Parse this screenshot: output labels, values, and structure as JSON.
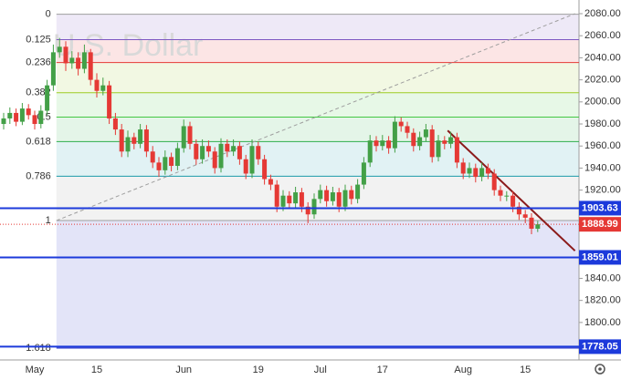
{
  "chart_data": {
    "type": "candlestick",
    "watermark": "U.S. Dollar",
    "up_color": "#43a047",
    "down_color": "#e53935",
    "ylim": [
      1766,
      2092.4
    ],
    "yticks": [
      {
        "value": 2080,
        "label": "2080.00"
      },
      {
        "value": 2060,
        "label": "2060.00"
      },
      {
        "value": 2040,
        "label": "2040.00"
      },
      {
        "value": 2020,
        "label": "2020.00"
      },
      {
        "value": 2000,
        "label": "2000.00"
      },
      {
        "value": 1980,
        "label": "1980.00"
      },
      {
        "value": 1960,
        "label": "1960.00"
      },
      {
        "value": 1940,
        "label": "1940.00"
      },
      {
        "value": 1920,
        "label": "1920.00"
      },
      {
        "value": 1840,
        "label": "1840.00"
      },
      {
        "value": 1820,
        "label": "1820.00"
      },
      {
        "value": 1800,
        "label": "1800.00"
      }
    ],
    "categories": [
      null,
      null,
      null,
      null,
      null,
      "May",
      null,
      null,
      null,
      null,
      null,
      null,
      null,
      null,
      null,
      "15",
      null,
      null,
      null,
      null,
      null,
      null,
      null,
      null,
      null,
      null,
      null,
      null,
      null,
      "Jun",
      null,
      null,
      null,
      null,
      null,
      null,
      null,
      null,
      null,
      null,
      null,
      "19",
      null,
      null,
      null,
      null,
      null,
      null,
      null,
      null,
      null,
      "Jul",
      null,
      null,
      null,
      null,
      null,
      null,
      null,
      null,
      null,
      "17",
      null,
      null,
      null,
      null,
      null,
      null,
      null,
      null,
      null,
      null,
      null,
      null,
      "Aug",
      null,
      null,
      null,
      null,
      null,
      null,
      null,
      null,
      null,
      "15",
      null,
      null
    ],
    "candles": [
      [
        1980,
        1990,
        1975,
        1985
      ],
      [
        1985,
        1995,
        1980,
        1990
      ],
      [
        1990,
        1994,
        1978,
        1982
      ],
      [
        1982,
        1999,
        1979,
        1994
      ],
      [
        1994,
        1998,
        1984,
        1988
      ],
      [
        1988,
        1992,
        1975,
        1980
      ],
      [
        1980,
        1997,
        1976,
        1992
      ],
      [
        1992,
        2020,
        1988,
        2015
      ],
      [
        2015,
        2052,
        2010,
        2045
      ],
      [
        2045,
        2058,
        2040,
        2050
      ],
      [
        2050,
        2055,
        2028,
        2035
      ],
      [
        2035,
        2046,
        2030,
        2040
      ],
      [
        2040,
        2045,
        2024,
        2030
      ],
      [
        2030,
        2052,
        2026,
        2045
      ],
      [
        2045,
        2048,
        2015,
        2020
      ],
      [
        2020,
        2026,
        2004,
        2010
      ],
      [
        2010,
        2022,
        2006,
        2015
      ],
      [
        2015,
        2019,
        1980,
        1985
      ],
      [
        1985,
        1990,
        1970,
        1975
      ],
      [
        1975,
        1980,
        1950,
        1955
      ],
      [
        1955,
        1974,
        1950,
        1968
      ],
      [
        1968,
        1972,
        1957,
        1962
      ],
      [
        1962,
        1980,
        1958,
        1975
      ],
      [
        1975,
        1979,
        1950,
        1955
      ],
      [
        1955,
        1960,
        1940,
        1945
      ],
      [
        1945,
        1950,
        1932,
        1938
      ],
      [
        1938,
        1956,
        1934,
        1950
      ],
      [
        1950,
        1954,
        1937,
        1942
      ],
      [
        1942,
        1963,
        1938,
        1958
      ],
      [
        1958,
        1984,
        1954,
        1978
      ],
      [
        1978,
        1982,
        1957,
        1962
      ],
      [
        1962,
        1966,
        1943,
        1948
      ],
      [
        1948,
        1966,
        1944,
        1960
      ],
      [
        1960,
        1965,
        1950,
        1955
      ],
      [
        1955,
        1959,
        1935,
        1940
      ],
      [
        1940,
        1967,
        1936,
        1962
      ],
      [
        1962,
        1966,
        1950,
        1955
      ],
      [
        1955,
        1966,
        1951,
        1960
      ],
      [
        1960,
        1964,
        1943,
        1948
      ],
      [
        1948,
        1952,
        1930,
        1935
      ],
      [
        1935,
        1966,
        1931,
        1960
      ],
      [
        1960,
        1964,
        1943,
        1948
      ],
      [
        1948,
        1952,
        1925,
        1930
      ],
      [
        1930,
        1934,
        1920,
        1925
      ],
      [
        1925,
        1929,
        1900,
        1905
      ],
      [
        1905,
        1920,
        1901,
        1915
      ],
      [
        1915,
        1919,
        1903,
        1908
      ],
      [
        1908,
        1923,
        1904,
        1918
      ],
      [
        1918,
        1922,
        1900,
        1905
      ],
      [
        1905,
        1909,
        1890,
        1898
      ],
      [
        1898,
        1917,
        1894,
        1912
      ],
      [
        1912,
        1925,
        1908,
        1920
      ],
      [
        1920,
        1924,
        1905,
        1910
      ],
      [
        1910,
        1923,
        1906,
        1918
      ],
      [
        1918,
        1922,
        1900,
        1905
      ],
      [
        1905,
        1925,
        1901,
        1920
      ],
      [
        1920,
        1924,
        1907,
        1912
      ],
      [
        1912,
        1930,
        1908,
        1925
      ],
      [
        1925,
        1950,
        1921,
        1945
      ],
      [
        1945,
        1970,
        1941,
        1965
      ],
      [
        1965,
        1969,
        1955,
        1960
      ],
      [
        1960,
        1970,
        1956,
        1965
      ],
      [
        1965,
        1969,
        1953,
        1958
      ],
      [
        1958,
        1987,
        1954,
        1982
      ],
      [
        1982,
        1986,
        1973,
        1978
      ],
      [
        1978,
        1982,
        1967,
        1972
      ],
      [
        1972,
        1976,
        1955,
        1960
      ],
      [
        1960,
        1973,
        1956,
        1968
      ],
      [
        1968,
        1980,
        1964,
        1975
      ],
      [
        1975,
        1979,
        1945,
        1950
      ],
      [
        1950,
        1970,
        1946,
        1965
      ],
      [
        1965,
        1969,
        1957,
        1962
      ],
      [
        1962,
        1973,
        1958,
        1968
      ],
      [
        1968,
        1972,
        1940,
        1945
      ],
      [
        1945,
        1949,
        1930,
        1935
      ],
      [
        1935,
        1945,
        1931,
        1940
      ],
      [
        1940,
        1944,
        1927,
        1932
      ],
      [
        1932,
        1945,
        1928,
        1940
      ],
      [
        1940,
        1944,
        1930,
        1935
      ],
      [
        1935,
        1939,
        1915,
        1920
      ],
      [
        1920,
        1924,
        1910,
        1915
      ],
      [
        1915,
        1919,
        1910,
        1915
      ],
      [
        1915,
        1919,
        1900,
        1905
      ],
      [
        1905,
        1909,
        1893,
        1898
      ],
      [
        1898,
        1902,
        1890,
        1895
      ],
      [
        1895,
        1899,
        1880,
        1885
      ],
      [
        1885,
        1892,
        1882,
        1888.99
      ]
    ],
    "fib": {
      "start": 8.5,
      "ratios": [
        0,
        0.125,
        0.236,
        0.382,
        0.5,
        0.618,
        0.786,
        1,
        1.618
      ],
      "prices": [
        2079.5,
        2056.5,
        2035.7,
        2008.3,
        1986.2,
        1964,
        1932.6,
        1892.4,
        1776.7
      ],
      "colors": [
        "#9e9e9e",
        "#7e57c2",
        "#e53935",
        "#9ccc25",
        "#43c743",
        "#2eae4b",
        "#1b9aa8",
        "#9e9e9e",
        "#2630c8"
      ]
    },
    "price_lines": {
      "values": [
        1903.63,
        1859.01,
        1778.05
      ],
      "color": "#1c3adb"
    },
    "trend_lines": [
      {
        "x": [
          8.5,
          92
        ],
        "y": [
          1892.4,
          2080
        ],
        "color": "#9e9e9e",
        "dashed": true
      },
      {
        "x": [
          71.5,
          92
        ],
        "y": [
          1974,
          1865
        ],
        "color": "#8b1a1a",
        "dashed": false
      }
    ]
  }
}
